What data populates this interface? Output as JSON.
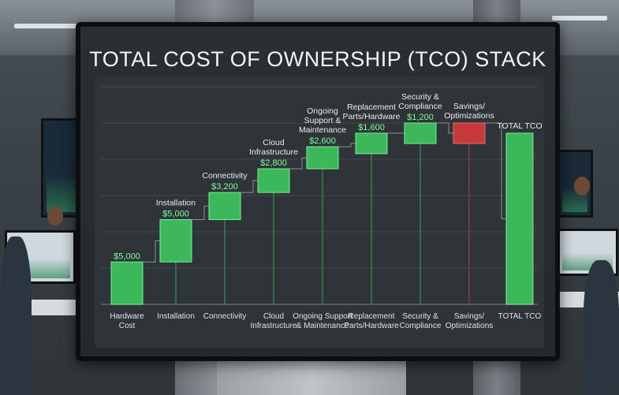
{
  "chart_data": {
    "type": "bar",
    "subtype": "waterfall",
    "title": "TOTAL COST OF OWNERSHIP (TCO) STACK",
    "grid": true,
    "steps": [
      {
        "top_label": "",
        "value_label": "$5,000",
        "axis_label": [
          "Hardware",
          "Cost"
        ],
        "value": 5000,
        "color": "#3ec45e",
        "kind": "increase"
      },
      {
        "top_label": "Installation",
        "value_label": "$5,000",
        "axis_label": [
          "Installation"
        ],
        "value": 5000,
        "color": "#3ec45e",
        "kind": "increase"
      },
      {
        "top_label": "Connectivity",
        "value_label": "$3,200",
        "axis_label": [
          "Connectivity"
        ],
        "value": 3200,
        "color": "#3ec45e",
        "kind": "increase"
      },
      {
        "top_label": "Cloud\nInfrastructure",
        "value_label": "$2,800",
        "axis_label": [
          "Cloud",
          "Infrastructure"
        ],
        "value": 2800,
        "color": "#3ec45e",
        "kind": "increase"
      },
      {
        "top_label": "Ongoing\nSupport &\nMaintenance",
        "value_label": "$2,600",
        "axis_label": [
          "Ongoing Support",
          "& Maintenance"
        ],
        "value": 2600,
        "color": "#3ec45e",
        "kind": "increase"
      },
      {
        "top_label": "Replacement\nParts/Hardware",
        "value_label": "$1,600",
        "axis_label": [
          "Replacement",
          "Parts/Hardware"
        ],
        "value": 1600,
        "color": "#3ec45e",
        "kind": "increase"
      },
      {
        "top_label": "Security &\nCompliance",
        "value_label": "$1,200",
        "axis_label": [
          "Security &",
          "Compliance"
        ],
        "value": 1200,
        "color": "#3ec45e",
        "kind": "increase"
      },
      {
        "top_label": "Savings/\nOptimizations",
        "value_label": "",
        "axis_label": [
          "Savings/",
          "Optimizations"
        ],
        "value": -1200,
        "color": "#d33a3a",
        "kind": "decrease"
      },
      {
        "top_label": "TOTAL TCO",
        "value_label": "",
        "axis_label": [
          "TOTAL TCO"
        ],
        "value": 20200,
        "color": "#3ec45e",
        "kind": "total"
      }
    ]
  }
}
